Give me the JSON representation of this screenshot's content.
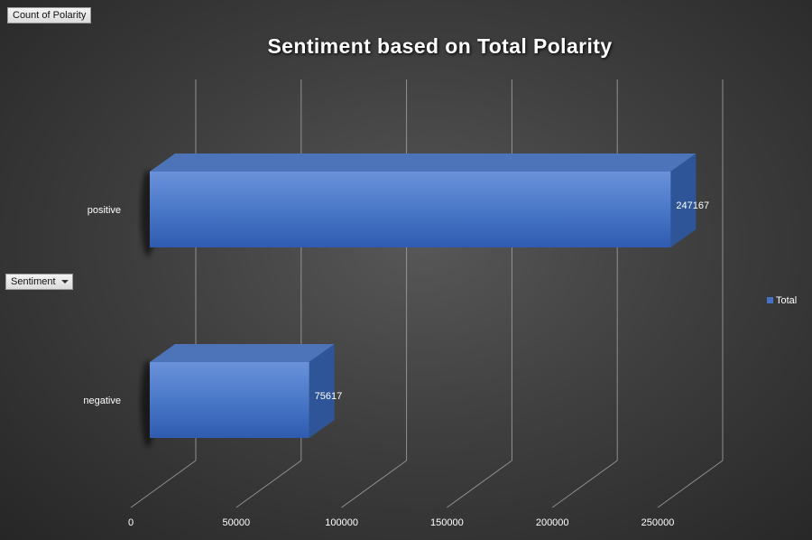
{
  "pivot_buttons": {
    "value_field": "Count of Polarity",
    "axis_field": "Sentiment"
  },
  "colors": {
    "bar_front": "#4472c4",
    "bar_top": "#4d74b8",
    "bar_side": "#2e5597",
    "grid": "#a6a6a6",
    "text": "#ffffff"
  },
  "chart_data": {
    "type": "bar",
    "orientation": "horizontal",
    "style": "3d-clustered-bar",
    "title": "Sentiment based on Total Polarity",
    "categories": [
      "positive",
      "negative"
    ],
    "series": [
      {
        "name": "Total",
        "values": [
          247167,
          75617
        ]
      }
    ],
    "data_labels": [
      "247167",
      "75617"
    ],
    "x_ticks": [
      "0",
      "50000",
      "100000",
      "150000",
      "200000",
      "250000"
    ],
    "xlim": [
      0,
      250000
    ],
    "grid": true,
    "legend_position": "right"
  }
}
